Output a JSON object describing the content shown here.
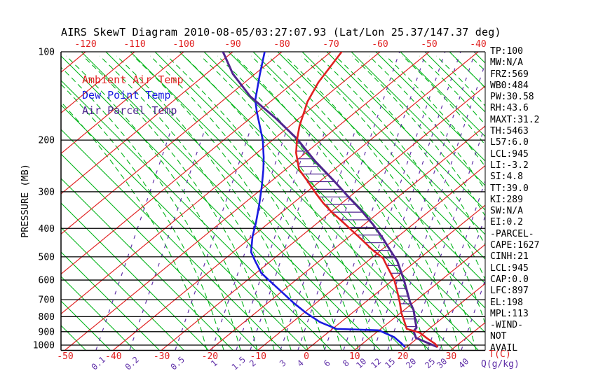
{
  "title": "AIRS SkewT Diagram 2010-08-05/03:27:07.93 (Lat/Lon 25.37/147.37 deg)",
  "colors": {
    "isotherm_red": "#e02020",
    "adiabat_green": "#00b418",
    "mixing_purple": "#6030a8",
    "ambient": "#e02020",
    "dew_point": "#1a1ae0",
    "parcel": "#50268f",
    "axis_black": "#000000"
  },
  "panel": {
    "lines": [
      "TP:100",
      "MW:N/A",
      "FRZ:569",
      "WB0:484",
      "PW:30.58",
      "RH:43.6",
      "MAXT:31.2",
      "TH:5463",
      "L57:6.0",
      "LCL:945",
      "LI:-3.2",
      "SI:4.8",
      "TT:39.0",
      "KI:289",
      "SW:N/A",
      "EI:0.2",
      "-PARCEL-",
      "CAPE:1627",
      "CINH:21",
      "LCL:945",
      "CAP:0.0",
      "LFC:897",
      "EL:198",
      "MPL:113",
      "-WIND-",
      "NOT",
      "AVAIL"
    ]
  },
  "chart_data": {
    "type": "line",
    "subtype": "skewt-log-p",
    "title": "AIRS SkewT Diagram 2010-08-05/03:27:07.93 (Lat/Lon 25.37/147.37 deg)",
    "pressure_axis": {
      "label": "PRESSURE (MB)",
      "scale": "log",
      "range": [
        100,
        1040
      ],
      "ticks": [
        100,
        200,
        300,
        400,
        500,
        600,
        700,
        800,
        900,
        1000
      ]
    },
    "temp_axis": {
      "unit_label": "T(C)",
      "ticks_top": [
        -120,
        -110,
        -100,
        -90,
        -80,
        -70,
        -60,
        -50,
        -40
      ],
      "ticks_bottom": [
        -50,
        -40,
        -30,
        -20,
        -10,
        0,
        10,
        20,
        30
      ]
    },
    "mixing_axis": {
      "unit_label": "Q(g/kg)",
      "ticks": [
        0.1,
        0.2,
        0.5,
        1,
        1.5,
        2,
        3,
        4,
        6,
        8,
        10,
        12,
        15,
        20,
        25,
        30,
        40
      ]
    },
    "grid": {
      "isotherms_c_step": 10,
      "isotherm_range_c": [
        -120,
        30
      ],
      "dry_adiabats": "solid green, 45 deg",
      "moist_adiabats": "dashed green, curved",
      "mixing_ratio_lines": "dashed purple"
    },
    "series": [
      {
        "name": "Ambient Air Temp",
        "color": "#e02020",
        "points_p_mb_t_c": [
          [
            100,
            -67.8
          ],
          [
            127,
            -65
          ],
          [
            148,
            -62.4
          ],
          [
            179,
            -58
          ],
          [
            200,
            -55
          ],
          [
            221,
            -52
          ],
          [
            252,
            -47.2
          ],
          [
            273,
            -43.1
          ],
          [
            302,
            -38.1
          ],
          [
            328,
            -33.8
          ],
          [
            352,
            -29.8
          ],
          [
            380,
            -25.1
          ],
          [
            408,
            -20.8
          ],
          [
            438,
            -16.5
          ],
          [
            474,
            -11.8
          ],
          [
            505,
            -7.6
          ],
          [
            543,
            -4.3
          ],
          [
            600,
            0.3
          ],
          [
            659,
            4.0
          ],
          [
            716,
            7.2
          ],
          [
            777,
            10.2
          ],
          [
            835,
            13.2
          ],
          [
            881,
            15.4
          ],
          [
            895,
            17.4
          ],
          [
            908,
            19.1
          ],
          [
            948,
            22.0
          ],
          [
            990,
            25.1
          ],
          [
            1012,
            26.3
          ]
        ]
      },
      {
        "name": "Dew Point Temp",
        "color": "#1a1ae0",
        "points_p_mb_t_c": [
          [
            100,
            -83.5
          ],
          [
            119,
            -79
          ],
          [
            146,
            -73.5
          ],
          [
            160,
            -70.3
          ],
          [
            200,
            -62
          ],
          [
            229,
            -57.5
          ],
          [
            253,
            -54.4
          ],
          [
            290,
            -50.4
          ],
          [
            333,
            -46.5
          ],
          [
            380,
            -42.9
          ],
          [
            427,
            -39.9
          ],
          [
            482,
            -36.3
          ],
          [
            517,
            -33.2
          ],
          [
            568,
            -28.9
          ],
          [
            610,
            -24.6
          ],
          [
            662,
            -19.6
          ],
          [
            720,
            -14.5
          ],
          [
            777,
            -9.5
          ],
          [
            835,
            -4.3
          ],
          [
            881,
            0.9
          ],
          [
            890,
            9.9
          ],
          [
            938,
            14.8
          ],
          [
            985,
            17.9
          ],
          [
            1012,
            19.5
          ]
        ]
      },
      {
        "name": "Air Parcel Temp",
        "color": "#50268f",
        "points_p_mb_t_c": [
          [
            100,
            -92
          ],
          [
            119,
            -84.5
          ],
          [
            142,
            -75.4
          ],
          [
            169,
            -64.6
          ],
          [
            198,
            -55.3
          ],
          [
            236,
            -46
          ],
          [
            273,
            -37.7
          ],
          [
            314,
            -29.9
          ],
          [
            347,
            -24.2
          ],
          [
            387,
            -18.3
          ],
          [
            432,
            -12.7
          ],
          [
            474,
            -8.2
          ],
          [
            517,
            -3.9
          ],
          [
            600,
            2.3
          ],
          [
            710,
            9.0
          ],
          [
            760,
            12.0
          ],
          [
            829,
            15.2
          ],
          [
            872,
            17.1
          ],
          [
            897,
            17.4
          ],
          [
            945,
            19.6
          ],
          [
            1012,
            26.1
          ]
        ]
      }
    ],
    "hatched_region": {
      "between": [
        "Ambient Air Temp",
        "Air Parcel Temp"
      ],
      "pressure_range_mb": [
        200,
        897
      ],
      "meaning": "CAPE area, horizontal purple hatching"
    },
    "annotations": {
      "EL_mb": 198,
      "LFC_mb": 897,
      "LCL_mb": 945,
      "CAPE": 1627
    }
  }
}
